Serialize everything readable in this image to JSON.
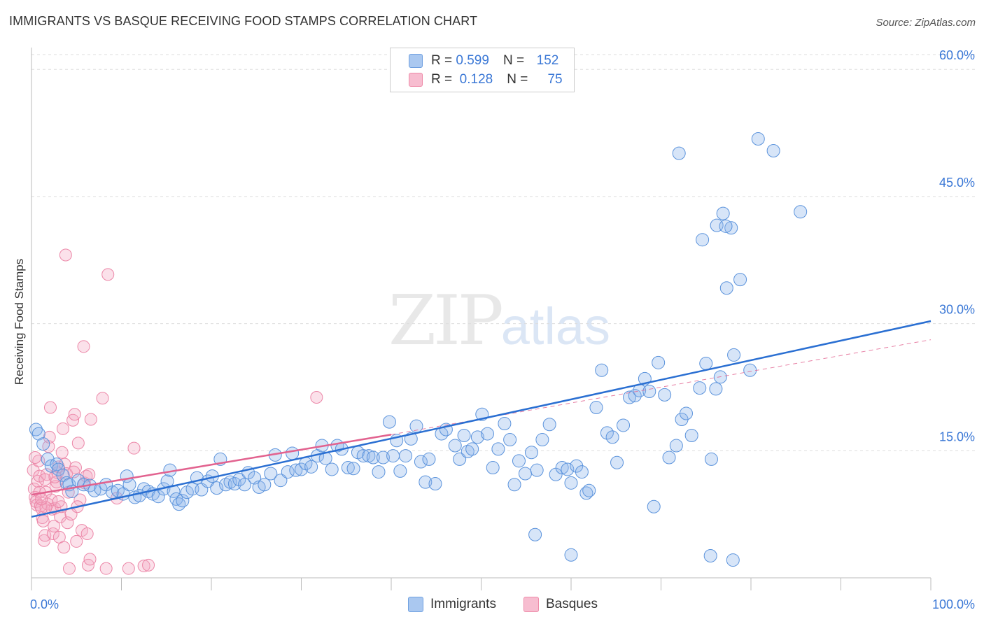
{
  "header": {
    "title": "IMMIGRANTS VS BASQUE RECEIVING FOOD STAMPS CORRELATION CHART",
    "source": "Source: ZipAtlas.com"
  },
  "watermark": {
    "zip": "ZIP",
    "atlas": "atlas"
  },
  "legend": {
    "rows": [
      {
        "r_label": "R =",
        "r_value": "0.599",
        "n_label": "N =",
        "n_value": "152",
        "color": "#aac8f0",
        "border": "#6fa0e0"
      },
      {
        "r_label": "R =",
        "r_value": "0.128",
        "n_label": "N =",
        "n_value": "75",
        "color": "#f7bdd0",
        "border": "#ee8aa8"
      }
    ]
  },
  "bottom_legend": [
    {
      "label": "Immigrants",
      "color": "#aac8f0",
      "border": "#6fa0e0"
    },
    {
      "label": "Basques",
      "color": "#f7bdd0",
      "border": "#ee8aa8"
    }
  ],
  "chart_data": {
    "type": "scatter",
    "title": "IMMIGRANTS VS BASQUE RECEIVING FOOD STAMPS CORRELATION CHART",
    "xlabel": "",
    "ylabel": "Receiving Food Stamps",
    "xlim": [
      0,
      100
    ],
    "ylim": [
      0,
      62
    ],
    "x_tick_labels": [
      "0.0%",
      "100.0%"
    ],
    "y_ticks": [
      15,
      30,
      45,
      60
    ],
    "y_tick_labels": [
      "15.0%",
      "30.0%",
      "45.0%",
      "60.0%"
    ],
    "grid": true,
    "colors": {
      "immigrants_fill": "rgba(140,180,235,0.35)",
      "immigrants_stroke": "#5b93dc",
      "immigrants_line": "#2a6fd2",
      "basques_fill": "rgba(244,170,195,0.35)",
      "basques_stroke": "#ec87a8",
      "basques_line": "#e2628f",
      "grid": "#dddddd",
      "axis": "#bbbbbb",
      "tick_text": "#3b78d6"
    },
    "series": [
      {
        "name": "Immigrants",
        "r": 0.599,
        "n": 152,
        "trend": {
          "x0": 0,
          "y0": 7.2,
          "x1": 100,
          "y1": 30.3
        },
        "points": [
          [
            0.5,
            17.5
          ],
          [
            0.8,
            17.0
          ],
          [
            1.3,
            15.8
          ],
          [
            1.8,
            14.0
          ],
          [
            2.2,
            13.2
          ],
          [
            2.8,
            13.4
          ],
          [
            3.0,
            12.8
          ],
          [
            3.5,
            12.1
          ],
          [
            3.9,
            11.2
          ],
          [
            4.2,
            11.0
          ],
          [
            4.5,
            10.2
          ],
          [
            5.2,
            11.5
          ],
          [
            5.8,
            11.0
          ],
          [
            6.5,
            10.9
          ],
          [
            7.0,
            10.3
          ],
          [
            7.7,
            10.5
          ],
          [
            8.3,
            11.0
          ],
          [
            9.0,
            10.1
          ],
          [
            9.6,
            10.3
          ],
          [
            10.2,
            9.9
          ],
          [
            10.6,
            12.0
          ],
          [
            10.9,
            11.0
          ],
          [
            11.5,
            9.5
          ],
          [
            12.0,
            9.7
          ],
          [
            12.5,
            10.5
          ],
          [
            13.0,
            10.2
          ],
          [
            13.5,
            9.9
          ],
          [
            14.1,
            9.6
          ],
          [
            14.7,
            10.5
          ],
          [
            15.1,
            11.4
          ],
          [
            15.4,
            12.7
          ],
          [
            15.8,
            10.2
          ],
          [
            16.1,
            9.3
          ],
          [
            16.4,
            8.7
          ],
          [
            16.8,
            9.1
          ],
          [
            17.3,
            10.1
          ],
          [
            17.9,
            10.5
          ],
          [
            18.4,
            11.8
          ],
          [
            18.9,
            10.4
          ],
          [
            19.6,
            11.4
          ],
          [
            20.1,
            12.0
          ],
          [
            20.6,
            10.6
          ],
          [
            21.0,
            14.0
          ],
          [
            21.6,
            11.0
          ],
          [
            22.1,
            11.3
          ],
          [
            22.6,
            11.1
          ],
          [
            23.1,
            11.6
          ],
          [
            23.7,
            11.0
          ],
          [
            24.1,
            12.4
          ],
          [
            24.8,
            11.8
          ],
          [
            25.3,
            10.7
          ],
          [
            25.9,
            11.0
          ],
          [
            26.6,
            12.3
          ],
          [
            27.1,
            14.5
          ],
          [
            27.7,
            11.5
          ],
          [
            28.5,
            12.5
          ],
          [
            29.0,
            14.7
          ],
          [
            29.4,
            12.7
          ],
          [
            30.0,
            12.8
          ],
          [
            30.5,
            13.5
          ],
          [
            31.1,
            13.1
          ],
          [
            31.8,
            14.4
          ],
          [
            32.3,
            15.6
          ],
          [
            32.7,
            14.1
          ],
          [
            33.4,
            12.8
          ],
          [
            34.0,
            15.6
          ],
          [
            34.5,
            15.2
          ],
          [
            35.2,
            13.0
          ],
          [
            35.8,
            12.9
          ],
          [
            36.3,
            14.8
          ],
          [
            36.9,
            14.4
          ],
          [
            37.5,
            14.4
          ],
          [
            38.0,
            14.2
          ],
          [
            38.6,
            12.5
          ],
          [
            39.1,
            14.2
          ],
          [
            39.8,
            18.4
          ],
          [
            40.2,
            14.4
          ],
          [
            40.6,
            16.2
          ],
          [
            41.0,
            12.6
          ],
          [
            41.6,
            14.4
          ],
          [
            42.2,
            16.4
          ],
          [
            42.8,
            17.9
          ],
          [
            43.3,
            13.7
          ],
          [
            43.8,
            11.3
          ],
          [
            44.2,
            14.0
          ],
          [
            44.9,
            11.1
          ],
          [
            45.6,
            17.0
          ],
          [
            46.1,
            17.5
          ],
          [
            47.1,
            15.6
          ],
          [
            47.6,
            14.0
          ],
          [
            48.1,
            16.8
          ],
          [
            48.5,
            14.9
          ],
          [
            49.0,
            15.2
          ],
          [
            49.6,
            16.6
          ],
          [
            50.1,
            19.3
          ],
          [
            50.7,
            17.0
          ],
          [
            51.3,
            13.0
          ],
          [
            51.9,
            15.2
          ],
          [
            52.6,
            18.2
          ],
          [
            53.2,
            16.3
          ],
          [
            53.7,
            11.0
          ],
          [
            54.2,
            13.8
          ],
          [
            54.9,
            12.3
          ],
          [
            55.6,
            14.8
          ],
          [
            56.2,
            12.7
          ],
          [
            56.8,
            16.3
          ],
          [
            57.6,
            18.1
          ],
          [
            58.3,
            12.2
          ],
          [
            59.0,
            13.0
          ],
          [
            59.6,
            12.8
          ],
          [
            60.0,
            11.2
          ],
          [
            60.6,
            13.2
          ],
          [
            61.2,
            12.5
          ],
          [
            61.7,
            10.0
          ],
          [
            62.0,
            10.3
          ],
          [
            62.8,
            20.1
          ],
          [
            63.4,
            24.5
          ],
          [
            64.0,
            17.1
          ],
          [
            64.6,
            16.6
          ],
          [
            65.1,
            13.6
          ],
          [
            65.8,
            18.0
          ],
          [
            66.5,
            21.3
          ],
          [
            67.1,
            21.5
          ],
          [
            67.6,
            22.1
          ],
          [
            68.2,
            23.5
          ],
          [
            68.7,
            22.0
          ],
          [
            69.2,
            8.4
          ],
          [
            69.7,
            25.4
          ],
          [
            70.4,
            21.6
          ],
          [
            70.9,
            14.2
          ],
          [
            71.7,
            15.6
          ],
          [
            72.3,
            18.7
          ],
          [
            72.8,
            19.4
          ],
          [
            73.4,
            16.8
          ],
          [
            74.3,
            22.4
          ],
          [
            75.0,
            25.3
          ],
          [
            75.6,
            14.0
          ],
          [
            76.1,
            22.3
          ],
          [
            76.6,
            23.7
          ],
          [
            77.3,
            34.2
          ],
          [
            78.1,
            26.3
          ],
          [
            78.8,
            35.2
          ],
          [
            72.0,
            50.1
          ],
          [
            76.2,
            41.6
          ],
          [
            77.8,
            41.3
          ],
          [
            74.6,
            39.9
          ],
          [
            77.2,
            41.5
          ],
          [
            82.5,
            50.4
          ],
          [
            80.8,
            51.8
          ],
          [
            85.5,
            43.2
          ],
          [
            56.0,
            5.1
          ],
          [
            60.0,
            2.7
          ],
          [
            75.5,
            2.6
          ],
          [
            78.0,
            2.1
          ],
          [
            79.9,
            24.5
          ],
          [
            76.9,
            43.0
          ]
        ]
      },
      {
        "name": "Basques",
        "r": 0.128,
        "n": 75,
        "trend": {
          "x0": 0,
          "y0": 9.8,
          "x1": 40,
          "y1": 16.9
        },
        "trend_extended": {
          "x0": 40,
          "y0": 16.9,
          "x1": 100,
          "y1": 28.1
        },
        "points": [
          [
            0.2,
            12.7
          ],
          [
            0.3,
            10.5
          ],
          [
            0.4,
            9.5
          ],
          [
            0.5,
            9.0
          ],
          [
            0.6,
            8.6
          ],
          [
            0.7,
            11.4
          ],
          [
            0.8,
            13.8
          ],
          [
            0.9,
            12.0
          ],
          [
            1.0,
            8.5
          ],
          [
            1.1,
            8.2
          ],
          [
            1.2,
            7.1
          ],
          [
            1.3,
            6.7
          ],
          [
            1.4,
            4.4
          ],
          [
            1.5,
            5.0
          ],
          [
            1.6,
            10.1
          ],
          [
            1.7,
            12.2
          ],
          [
            1.8,
            8.7
          ],
          [
            1.9,
            15.5
          ],
          [
            2.0,
            16.6
          ],
          [
            2.1,
            20.1
          ],
          [
            2.3,
            8.1
          ],
          [
            2.4,
            5.2
          ],
          [
            2.5,
            6.1
          ],
          [
            2.6,
            8.2
          ],
          [
            2.7,
            10.8
          ],
          [
            2.8,
            11.3
          ],
          [
            2.9,
            12.4
          ],
          [
            3.0,
            13.1
          ],
          [
            3.1,
            4.8
          ],
          [
            3.2,
            7.2
          ],
          [
            3.3,
            8.4
          ],
          [
            3.4,
            14.8
          ],
          [
            3.5,
            17.6
          ],
          [
            3.6,
            3.6
          ],
          [
            3.7,
            13.4
          ],
          [
            3.8,
            38.1
          ],
          [
            3.9,
            12.3
          ],
          [
            4.0,
            6.5
          ],
          [
            4.1,
            10.1
          ],
          [
            4.2,
            1.1
          ],
          [
            4.4,
            7.5
          ],
          [
            4.6,
            18.6
          ],
          [
            4.8,
            19.3
          ],
          [
            4.9,
            13.0
          ],
          [
            5.0,
            4.3
          ],
          [
            5.2,
            15.9
          ],
          [
            5.4,
            9.2
          ],
          [
            5.6,
            5.6
          ],
          [
            5.8,
            27.3
          ],
          [
            5.9,
            11.2
          ],
          [
            6.1,
            12.0
          ],
          [
            6.2,
            5.2
          ],
          [
            6.3,
            1.5
          ],
          [
            6.5,
            2.2
          ],
          [
            6.6,
            18.7
          ],
          [
            7.9,
            21.2
          ],
          [
            8.3,
            1.1
          ],
          [
            8.5,
            35.8
          ],
          [
            9.5,
            9.4
          ],
          [
            10.8,
            1.1
          ],
          [
            11.4,
            15.3
          ],
          [
            12.5,
            1.4
          ],
          [
            13.0,
            1.5
          ],
          [
            31.7,
            21.3
          ],
          [
            1.5,
            11.6
          ],
          [
            2.2,
            9.2
          ],
          [
            0.9,
            10.1
          ],
          [
            1.6,
            8.3
          ],
          [
            3.0,
            9.0
          ],
          [
            4.7,
            12.5
          ],
          [
            0.4,
            14.2
          ],
          [
            2.6,
            11.9
          ],
          [
            1.1,
            9.3
          ],
          [
            5.1,
            8.4
          ],
          [
            6.4,
            12.2
          ]
        ]
      }
    ]
  }
}
